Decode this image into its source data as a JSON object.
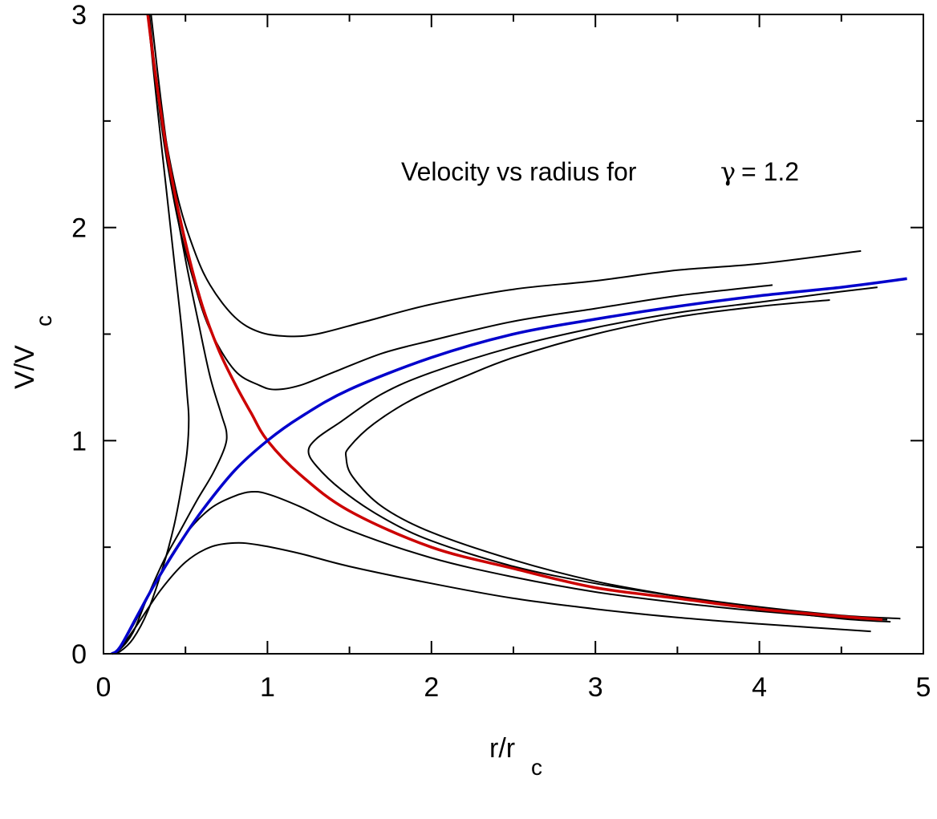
{
  "chart_data": {
    "type": "line",
    "title": "",
    "xlabel": "r/r",
    "xlabel_sub": "c",
    "ylabel": "V/V",
    "ylabel_sub": "c",
    "xlim": [
      0,
      5
    ],
    "ylim": [
      0,
      3
    ],
    "x_ticks": [
      "0",
      "1",
      "2",
      "3",
      "4",
      "5"
    ],
    "y_ticks": [
      "0",
      "1",
      "2",
      "3"
    ],
    "annotation": {
      "text": "Velocity vs radius for",
      "symbol": "γ",
      "value_text": "= 1.2"
    },
    "grid": false,
    "legend": "none",
    "series": [
      {
        "color": "#000000",
        "points": [
          [
            0.27,
            3.0
          ],
          [
            0.33,
            2.55
          ],
          [
            0.38,
            2.2
          ],
          [
            0.43,
            1.85
          ],
          [
            0.48,
            1.5
          ],
          [
            0.51,
            1.22
          ],
          [
            0.52,
            1.1
          ],
          [
            0.51,
            0.95
          ],
          [
            0.48,
            0.8
          ],
          [
            0.43,
            0.6
          ],
          [
            0.36,
            0.4
          ],
          [
            0.27,
            0.2
          ],
          [
            0.18,
            0.07
          ],
          [
            0.1,
            0.01
          ],
          [
            0.05,
            0.0
          ]
        ]
      },
      {
        "color": "#000000",
        "points": [
          [
            0.29,
            3.0
          ],
          [
            0.35,
            2.6
          ],
          [
            0.42,
            2.2
          ],
          [
            0.5,
            1.85
          ],
          [
            0.58,
            1.55
          ],
          [
            0.65,
            1.3
          ],
          [
            0.72,
            1.12
          ],
          [
            0.75,
            1.04
          ],
          [
            0.74,
            0.97
          ],
          [
            0.67,
            0.85
          ],
          [
            0.57,
            0.72
          ],
          [
            0.47,
            0.58
          ],
          [
            0.37,
            0.44
          ],
          [
            0.27,
            0.27
          ],
          [
            0.18,
            0.1
          ],
          [
            0.1,
            0.02
          ],
          [
            0.05,
            0.0
          ]
        ]
      },
      {
        "color": "#000000",
        "points": [
          [
            0.27,
            3.0
          ],
          [
            0.35,
            2.55
          ],
          [
            0.45,
            2.15
          ],
          [
            0.55,
            1.9
          ],
          [
            0.65,
            1.73
          ],
          [
            0.8,
            1.58
          ],
          [
            0.95,
            1.51
          ],
          [
            1.12,
            1.49
          ],
          [
            1.3,
            1.5
          ],
          [
            1.6,
            1.56
          ],
          [
            2.0,
            1.64
          ],
          [
            2.5,
            1.71
          ],
          [
            3.0,
            1.75
          ],
          [
            3.5,
            1.8
          ],
          [
            4.0,
            1.83
          ],
          [
            4.62,
            1.89
          ]
        ]
      },
      {
        "color": "#000000",
        "points": [
          [
            0.28,
            3.0
          ],
          [
            0.35,
            2.5
          ],
          [
            0.45,
            2.05
          ],
          [
            0.55,
            1.75
          ],
          [
            0.65,
            1.52
          ],
          [
            0.8,
            1.33
          ],
          [
            0.95,
            1.26
          ],
          [
            1.05,
            1.24
          ],
          [
            1.2,
            1.26
          ],
          [
            1.4,
            1.32
          ],
          [
            1.7,
            1.41
          ],
          [
            2.0,
            1.47
          ],
          [
            2.5,
            1.56
          ],
          [
            3.0,
            1.62
          ],
          [
            3.5,
            1.68
          ],
          [
            4.08,
            1.73
          ]
        ]
      },
      {
        "color": "#000000",
        "points": [
          [
            0.05,
            0.0
          ],
          [
            0.1,
            0.03
          ],
          [
            0.2,
            0.16
          ],
          [
            0.35,
            0.38
          ],
          [
            0.5,
            0.56
          ],
          [
            0.65,
            0.68
          ],
          [
            0.8,
            0.74
          ],
          [
            0.9,
            0.76
          ],
          [
            1.0,
            0.75
          ],
          [
            1.2,
            0.69
          ],
          [
            1.5,
            0.58
          ],
          [
            2.0,
            0.45
          ],
          [
            2.5,
            0.36
          ],
          [
            3.0,
            0.29
          ],
          [
            3.5,
            0.24
          ],
          [
            4.0,
            0.2
          ],
          [
            4.5,
            0.17
          ],
          [
            4.78,
            0.16
          ]
        ]
      },
      {
        "color": "#000000",
        "points": [
          [
            0.05,
            0.0
          ],
          [
            0.1,
            0.025
          ],
          [
            0.2,
            0.13
          ],
          [
            0.35,
            0.3
          ],
          [
            0.5,
            0.43
          ],
          [
            0.65,
            0.5
          ],
          [
            0.8,
            0.52
          ],
          [
            0.95,
            0.51
          ],
          [
            1.2,
            0.47
          ],
          [
            1.5,
            0.41
          ],
          [
            2.0,
            0.33
          ],
          [
            2.5,
            0.26
          ],
          [
            3.0,
            0.21
          ],
          [
            3.5,
            0.17
          ],
          [
            4.0,
            0.14
          ],
          [
            4.68,
            0.105
          ]
        ]
      },
      {
        "color": "#000000",
        "points": [
          [
            4.72,
            1.72
          ],
          [
            4.4,
            1.69
          ],
          [
            4.0,
            1.65
          ],
          [
            3.5,
            1.6
          ],
          [
            3.0,
            1.53
          ],
          [
            2.5,
            1.44
          ],
          [
            2.0,
            1.32
          ],
          [
            1.7,
            1.22
          ],
          [
            1.45,
            1.09
          ],
          [
            1.3,
            1.01
          ],
          [
            1.25,
            0.95
          ],
          [
            1.3,
            0.88
          ],
          [
            1.45,
            0.77
          ],
          [
            1.7,
            0.64
          ],
          [
            2.0,
            0.53
          ],
          [
            2.5,
            0.41
          ],
          [
            3.0,
            0.33
          ],
          [
            3.5,
            0.27
          ],
          [
            4.0,
            0.22
          ],
          [
            4.5,
            0.18
          ],
          [
            4.86,
            0.165
          ]
        ]
      },
      {
        "color": "#000000",
        "points": [
          [
            4.43,
            1.66
          ],
          [
            4.0,
            1.63
          ],
          [
            3.5,
            1.58
          ],
          [
            3.0,
            1.5
          ],
          [
            2.5,
            1.39
          ],
          [
            2.2,
            1.3
          ],
          [
            1.9,
            1.2
          ],
          [
            1.65,
            1.08
          ],
          [
            1.5,
            0.97
          ],
          [
            1.48,
            0.92
          ],
          [
            1.52,
            0.83
          ],
          [
            1.7,
            0.69
          ],
          [
            2.0,
            0.57
          ],
          [
            2.5,
            0.44
          ],
          [
            3.0,
            0.34
          ],
          [
            3.5,
            0.27
          ],
          [
            4.0,
            0.21
          ],
          [
            4.5,
            0.165
          ],
          [
            4.8,
            0.15
          ]
        ]
      },
      {
        "color": "#cc0000",
        "points": [
          [
            0.27,
            3.0
          ],
          [
            0.32,
            2.7
          ],
          [
            0.4,
            2.3
          ],
          [
            0.5,
            1.93
          ],
          [
            0.6,
            1.64
          ],
          [
            0.7,
            1.43
          ],
          [
            0.8,
            1.27
          ],
          [
            0.9,
            1.13
          ],
          [
            1.0,
            1.0
          ],
          [
            1.2,
            0.84
          ],
          [
            1.5,
            0.67
          ],
          [
            2.0,
            0.5
          ],
          [
            2.5,
            0.4
          ],
          [
            3.0,
            0.31
          ],
          [
            3.5,
            0.26
          ],
          [
            4.0,
            0.21
          ],
          [
            4.5,
            0.175
          ],
          [
            4.75,
            0.16
          ]
        ]
      },
      {
        "color": "#0000cc",
        "points": [
          [
            0.05,
            0.0
          ],
          [
            0.1,
            0.03
          ],
          [
            0.2,
            0.17
          ],
          [
            0.3,
            0.31
          ],
          [
            0.45,
            0.5
          ],
          [
            0.6,
            0.67
          ],
          [
            0.8,
            0.86
          ],
          [
            1.0,
            1.0
          ],
          [
            1.2,
            1.11
          ],
          [
            1.5,
            1.24
          ],
          [
            2.0,
            1.39
          ],
          [
            2.5,
            1.5
          ],
          [
            3.0,
            1.57
          ],
          [
            3.5,
            1.63
          ],
          [
            4.0,
            1.68
          ],
          [
            4.5,
            1.72
          ],
          [
            4.9,
            1.76
          ]
        ]
      }
    ]
  }
}
